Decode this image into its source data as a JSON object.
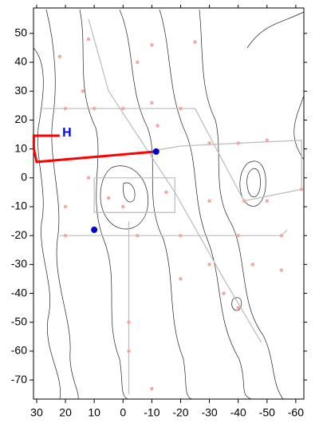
{
  "chart_data": {
    "type": "scatter",
    "xlim": [
      31.1,
      -62.8
    ],
    "ylim": [
      -76.6,
      58.8
    ],
    "xticks": [
      30,
      20,
      10,
      0,
      -10,
      -20,
      -30,
      -40,
      -50,
      -60
    ],
    "yticks": [
      -70,
      -60,
      -50,
      -40,
      -30,
      -20,
      -10,
      0,
      10,
      20,
      30,
      40,
      50
    ],
    "series": [
      {
        "mode": "line",
        "color": "#bbbbbb",
        "x": [
          -8,
          -20,
          -40,
          -62,
          -62
        ],
        "values": [
          9,
          11,
          12,
          13,
          -4
        ]
      },
      {
        "mode": "line",
        "color": "#bbbbbb",
        "x": [
          -2,
          -2,
          -2
        ],
        "values": [
          -15,
          -50,
          -75
        ]
      },
      {
        "mode": "line",
        "color": "#bbbbbb",
        "x": [
          28,
          0,
          -25,
          -42,
          -62
        ],
        "values": [
          24,
          24,
          24,
          -8,
          -4
        ]
      },
      {
        "mode": "line",
        "color": "#bbbbbb",
        "x": [
          22,
          10,
          -15,
          -55,
          -57
        ],
        "values": [
          -20,
          -20,
          -20,
          -20,
          -18
        ]
      },
      {
        "mode": "line",
        "color": "#bbbbbb",
        "x": [
          12,
          5,
          -18,
          -35,
          -48
        ],
        "values": [
          55,
          30,
          -5,
          -35,
          -57
        ]
      },
      {
        "mode": "line",
        "color": "#bbbbbb",
        "x": [
          10,
          10,
          -18,
          -18,
          10
        ],
        "values": [
          0,
          -12,
          -12,
          0,
          0
        ]
      },
      {
        "mode": "markers",
        "color": "#f4a6a6",
        "x": [
          20,
          10,
          0,
          -10,
          -20,
          -12,
          22,
          -5,
          -10,
          -25,
          -30,
          -40,
          -50,
          -62,
          -55,
          -50,
          -42,
          -30,
          -15,
          0,
          5,
          20,
          -5,
          -20,
          -40,
          -55,
          -45,
          -30,
          -35,
          -40,
          -2,
          -2,
          -10,
          12,
          14,
          12,
          20,
          -20
        ],
        "values": [
          24,
          24,
          24,
          26,
          24,
          18,
          42,
          40,
          46,
          47,
          12,
          12,
          13,
          -4,
          -20,
          -8,
          -8,
          -8,
          -5,
          -10,
          -7,
          -20,
          -20,
          -20,
          -20,
          -32,
          -30,
          -30,
          -40,
          -45,
          -50,
          -60,
          -73,
          48,
          30,
          0,
          -10,
          -35
        ]
      },
      {
        "mode": "line",
        "color": "#ff0000",
        "x": [
          22,
          31,
          31,
          30,
          -11.5
        ],
        "values": [
          14.6,
          14.6,
          10,
          5.5,
          9.1
        ]
      },
      {
        "mode": "markers",
        "color": "#0000cc",
        "x": [
          10,
          -11.5
        ],
        "values": [
          -18,
          9.1
        ]
      }
    ],
    "annotations": [
      {
        "text": "H",
        "x": 19.5,
        "y": 15.5,
        "color": "#0000ff"
      }
    ]
  }
}
